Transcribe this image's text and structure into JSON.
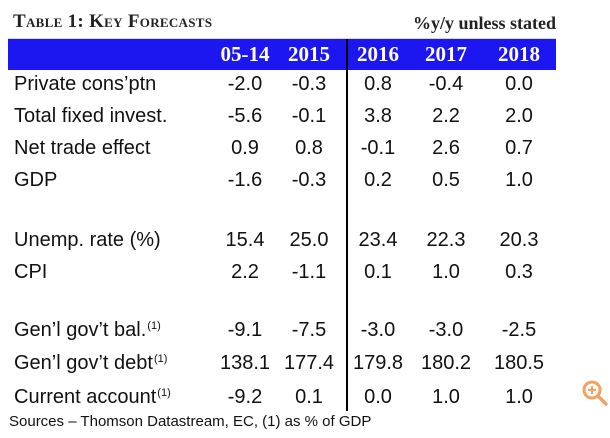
{
  "table": {
    "title": "Table 1: Key Forecasts",
    "units": "%y/y unless stated",
    "columns": [
      "05-14",
      "2015",
      "2016",
      "2017",
      "2018"
    ],
    "rows": [
      {
        "label": "Private cons’ptn",
        "note": "",
        "values": [
          "-2.0",
          "-0.3",
          "0.8",
          "-0.4",
          "0.0"
        ]
      },
      {
        "label": "Total fixed invest.",
        "note": "",
        "values": [
          "-5.6",
          "-0.1",
          "3.8",
          "2.2",
          "2.0"
        ]
      },
      {
        "label": "Net trade effect",
        "note": "",
        "values": [
          "0.9",
          "0.8",
          "-0.1",
          "2.6",
          "0.7"
        ]
      },
      {
        "label": "GDP",
        "note": "",
        "values": [
          "-1.6",
          "-0.3",
          "0.2",
          "0.5",
          "1.0"
        ]
      },
      {
        "label": "Unemp. rate (%)",
        "note": "",
        "values": [
          "15.4",
          "25.0",
          "23.4",
          "22.3",
          "20.3"
        ]
      },
      {
        "label": "CPI",
        "note": "",
        "values": [
          "2.2",
          "-1.1",
          "0.1",
          "1.0",
          "0.3"
        ]
      },
      {
        "label": "Gen’l gov’t bal.",
        "note": "(1)",
        "values": [
          "-9.1",
          "-7.5",
          "-3.0",
          "-3.0",
          "-2.5"
        ]
      },
      {
        "label": "Gen’l gov’t debt",
        "note": "(1)",
        "values": [
          "138.1",
          "177.4",
          "179.8",
          "180.2",
          "180.5"
        ]
      },
      {
        "label": "Current account",
        "note": "(1)",
        "values": [
          "-9.2",
          "0.1",
          "0.0",
          "1.0",
          "1.0"
        ]
      }
    ],
    "sources": "Sources – Thomson Datastream, EC, (1) as % of GDP"
  },
  "icons": {
    "zoom": "zoom-in-magnifier-icon",
    "zoom_color": "#f4a261"
  }
}
